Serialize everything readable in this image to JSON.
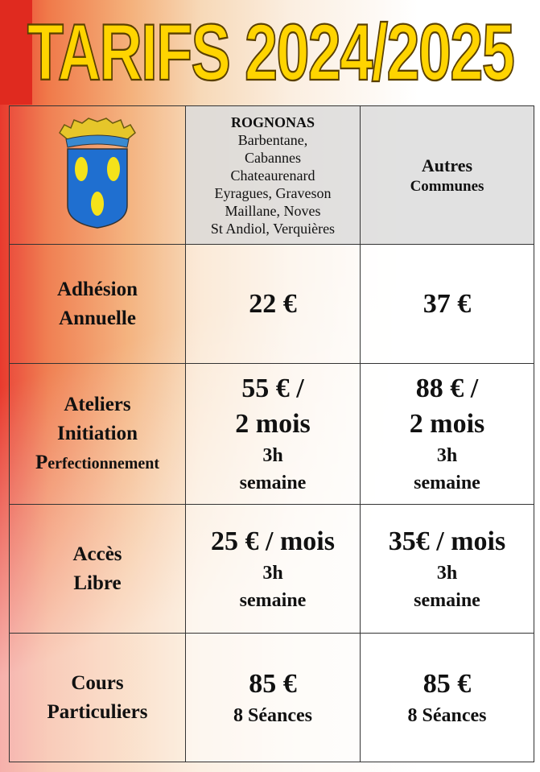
{
  "title": "TARIFS 2024/2025",
  "header": {
    "logo": "ROGNONAS",
    "col2_title": "ROGNONAS",
    "col2_towns": [
      "Barbentane,",
      "Cabannes",
      "Chateaurenard",
      "Eyragues, Graveson",
      "Maillane, Noves",
      "St Andiol, Verquières"
    ],
    "col3_line1": "Autres",
    "col3_line2": "Communes"
  },
  "rows": [
    {
      "label": [
        "Adhésion",
        "Annuelle"
      ],
      "rognonas": [
        "22  €"
      ],
      "autres": [
        "37 €"
      ]
    },
    {
      "label": [
        "Ateliers",
        "Initiation",
        "P",
        "erfectionnement"
      ],
      "rognonas": [
        "55 € /",
        "2 mois",
        "3h",
        "semaine"
      ],
      "autres": [
        "88 € /",
        "2 mois",
        "3h",
        "semaine"
      ]
    },
    {
      "label": [
        "Accès",
        "Libre"
      ],
      "rognonas": [
        "25 € / mois",
        "3h",
        "semaine"
      ],
      "autres": [
        "35€ / mois",
        "3h",
        "semaine"
      ]
    },
    {
      "label": [
        "Cours",
        "Particuliers"
      ],
      "rognonas": [
        "85 €",
        "8 Séances"
      ],
      "autres": [
        "85 €",
        "8 Séances"
      ]
    }
  ],
  "colors": {
    "title": "#ffd400",
    "shield": "#1f6fd0",
    "bean": "#f5e21a"
  }
}
